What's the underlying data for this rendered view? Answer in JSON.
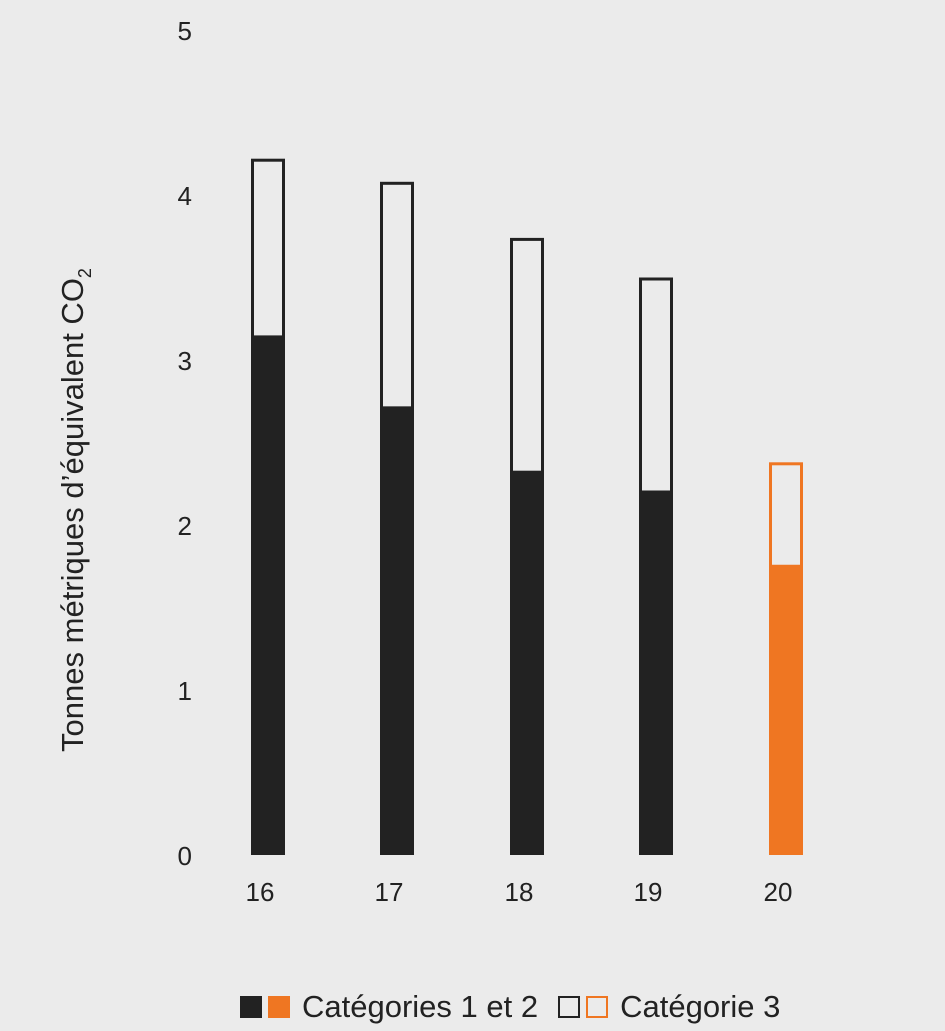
{
  "chart_data": {
    "type": "bar",
    "stacked": true,
    "title": "",
    "xlabel": "",
    "ylabel": "Tonnes métriques d’équivalent CO",
    "ylabel_subscript": "2",
    "categories": [
      "16",
      "17",
      "18",
      "19",
      "20"
    ],
    "ylim": [
      0,
      5
    ],
    "yticks": [
      "0",
      "1",
      "2",
      "3",
      "4",
      "5"
    ],
    "grid": false,
    "legend_position": "bottom-center",
    "series": [
      {
        "name": "Catégories 1 et 2",
        "values": [
          3.14,
          2.71,
          2.32,
          2.2,
          1.75
        ],
        "style": "filled"
      },
      {
        "name": "Catégorie 3",
        "values": [
          1.08,
          1.37,
          1.42,
          1.3,
          0.63
        ],
        "style": "outline"
      }
    ],
    "highlight_category": "20",
    "colors": {
      "default": "#222222",
      "highlight": "#ef7622",
      "outline_fill": "#ebebeb",
      "background": "#ebebeb"
    }
  },
  "legend": {
    "filled_label": "Catégories 1 et 2",
    "outline_label": "Catégorie 3"
  }
}
